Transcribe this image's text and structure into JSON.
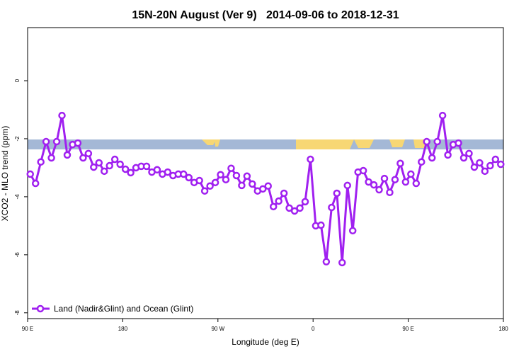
{
  "chart_data": {
    "type": "line",
    "title": "15N-20N August (Ver 9)   2014-09-06 to 2018-12-31",
    "xlabel": "Longitude (deg E)",
    "ylabel": "XCO2 - MLO trend (ppm)",
    "x": [
      92.5,
      97.5,
      102.5,
      107.5,
      112.5,
      117.5,
      122.5,
      127.5,
      132.5,
      137.5,
      142.5,
      147.5,
      152.5,
      157.5,
      162.5,
      167.5,
      172.5,
      177.5,
      182.5,
      187.5,
      192.5,
      197.5,
      202.5,
      207.5,
      212.5,
      217.5,
      222.5,
      227.5,
      232.5,
      237.5,
      242.5,
      247.5,
      252.5,
      257.5,
      262.5,
      267.5,
      272.5,
      277.5,
      282.5,
      287.5,
      292.5,
      297.5,
      302.5,
      307.5,
      312.5,
      317.5,
      322.5,
      327.5,
      332.5,
      337.5,
      342.5,
      347.5,
      352.5,
      357.5,
      362.5,
      367.5,
      372.5,
      377.5,
      382.5,
      387.5,
      392.5,
      397.5,
      402.5,
      407.5,
      412.5,
      417.5,
      422.5,
      427.5,
      432.5,
      437.5,
      442.5,
      447.5,
      452.5,
      457.5,
      462.5,
      467.5,
      472.5,
      477.5,
      482.5,
      487.5,
      492.5,
      497.5,
      502.5,
      507.5,
      512.5,
      517.5,
      522.5,
      527.5,
      532.5,
      537.5
    ],
    "series": [
      {
        "name": "Land (Nadir&Glint) and Ocean (Glint)",
        "color": "#a020f0",
        "values": [
          -3.22,
          -3.54,
          -2.8,
          -2.1,
          -2.66,
          -2.1,
          -1.2,
          -2.56,
          -2.2,
          -2.15,
          -2.66,
          -2.51,
          -2.98,
          -2.83,
          -3.12,
          -2.93,
          -2.71,
          -2.88,
          -3.05,
          -3.17,
          -3.0,
          -2.95,
          -2.95,
          -3.15,
          -3.07,
          -3.22,
          -3.15,
          -3.27,
          -3.22,
          -3.22,
          -3.34,
          -3.51,
          -3.44,
          -3.8,
          -3.63,
          -3.51,
          -3.24,
          -3.41,
          -3.02,
          -3.27,
          -3.61,
          -3.29,
          -3.56,
          -3.8,
          -3.73,
          -3.63,
          -4.34,
          -4.15,
          -3.88,
          -4.39,
          -4.49,
          -4.39,
          -4.17,
          -2.71,
          -5.0,
          -4.98,
          -6.24,
          -4.37,
          -3.88,
          -6.27,
          -3.61,
          -5.17,
          -3.15,
          -3.1,
          -3.49,
          -3.59,
          -3.76,
          -3.37,
          -3.85,
          -3.41,
          -2.85,
          -3.49,
          -3.22,
          -3.54,
          -2.8,
          -2.1,
          -2.66,
          -2.1,
          -1.2,
          -2.56,
          -2.2,
          -2.15,
          -2.66,
          -2.51,
          -2.98,
          -2.83,
          -3.12,
          -2.93,
          -2.71,
          -2.88
        ]
      }
    ],
    "xlim": [
      90,
      540
    ],
    "xticks": [
      {
        "value": 90,
        "label": "90 E"
      },
      180,
      {
        "value": 270,
        "label": "90 W"
      },
      {
        "value": 360,
        "label": "0"
      },
      {
        "value": 450,
        "label": "90 E"
      },
      {
        "value": 540,
        "label": "180"
      }
    ],
    "ylim": [
      -8.2,
      1.83
    ],
    "yticks": [
      -8,
      -6,
      -4,
      -2,
      0
    ],
    "legend": "bottom-left"
  }
}
